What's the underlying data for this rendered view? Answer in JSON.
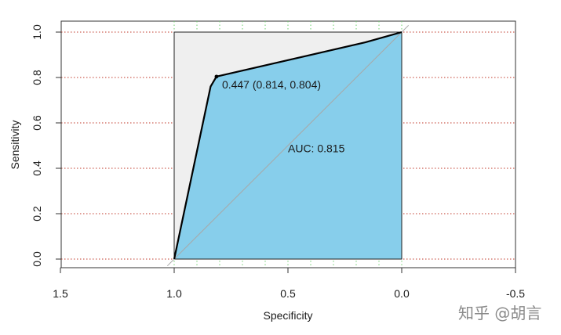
{
  "chart_data": {
    "type": "area",
    "title": "",
    "xlabel": "Specificity",
    "ylabel": "Sensitivity",
    "xlim": [
      1.5,
      -0.5
    ],
    "ylim": [
      0.0,
      1.0
    ],
    "x_reversed": true,
    "x_ticks": [
      1.5,
      1.0,
      0.5,
      0.0,
      -0.5
    ],
    "x_tick_labels": [
      "1.5",
      "1.0",
      "0.5",
      "0.0",
      "-0.5"
    ],
    "y_ticks": [
      0.0,
      0.2,
      0.4,
      0.6,
      0.8,
      1.0
    ],
    "y_tick_labels": [
      "0.0",
      "0.2",
      "0.4",
      "0.6",
      "0.8",
      "1.0"
    ],
    "horizontal_grid": "dotted red",
    "vertical_grid": "dotted green",
    "roc_curve": [
      {
        "specificity": 1.0,
        "sensitivity": 0.0
      },
      {
        "specificity": 0.84,
        "sensitivity": 0.76
      },
      {
        "specificity": 0.814,
        "sensitivity": 0.804
      },
      {
        "specificity": 0.16,
        "sensitivity": 0.955
      },
      {
        "specificity": 0.0,
        "sensitivity": 1.0
      }
    ],
    "best_threshold": {
      "threshold": 0.447,
      "specificity": 0.814,
      "sensitivity": 0.804
    },
    "best_threshold_label": "0.447 (0.814, 0.804)",
    "auc": 0.815,
    "auc_label": "AUC: 0.815",
    "colors": {
      "auc_fill": "#87ceeb",
      "plot_region": "#efefef",
      "curve": "#000000",
      "h_grid": "#c0392b",
      "v_grid": "#6bcf6b",
      "diagonal": "#a8a8a8"
    }
  },
  "watermark": "知乎 @胡言"
}
